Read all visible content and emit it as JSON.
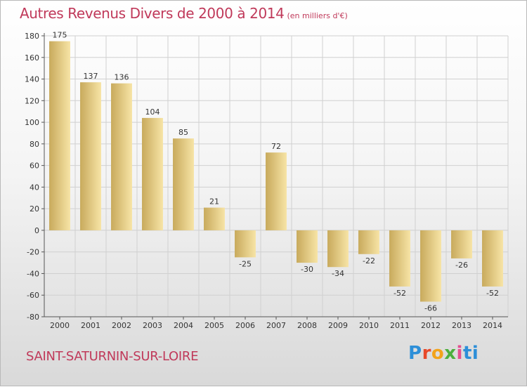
{
  "title": {
    "main": "Autres Revenus Divers de 2000 à 2014",
    "unit": "(en milliers d'€)"
  },
  "location": "SAINT-SATURNIN-SUR-LOIRE",
  "logo": {
    "text": "Proxiti"
  },
  "colors": {
    "title": "#c0395a",
    "bar_light": "#f7e4a6",
    "bar_dark": "#c8aa5c",
    "grid": "#d0d0d0"
  },
  "chart_data": {
    "type": "bar",
    "categories": [
      "2000",
      "2001",
      "2002",
      "2003",
      "2004",
      "2005",
      "2006",
      "2007",
      "2008",
      "2009",
      "2010",
      "2011",
      "2012",
      "2013",
      "2014"
    ],
    "values": [
      175,
      137,
      136,
      104,
      85,
      21,
      -25,
      72,
      -30,
      -34,
      -22,
      -52,
      -66,
      -26,
      -52
    ],
    "data_labels": [
      "175",
      "137",
      "136",
      "104",
      "85",
      "21",
      "-25",
      "72",
      "-30",
      "-34",
      "-22",
      "-52",
      "-66",
      "-26",
      "-52"
    ],
    "ylim": [
      -80,
      180
    ],
    "yticks": [
      180,
      160,
      140,
      120,
      100,
      80,
      60,
      40,
      20,
      0,
      -20,
      -40,
      -60,
      -80
    ],
    "grid": true,
    "legend": "none"
  }
}
